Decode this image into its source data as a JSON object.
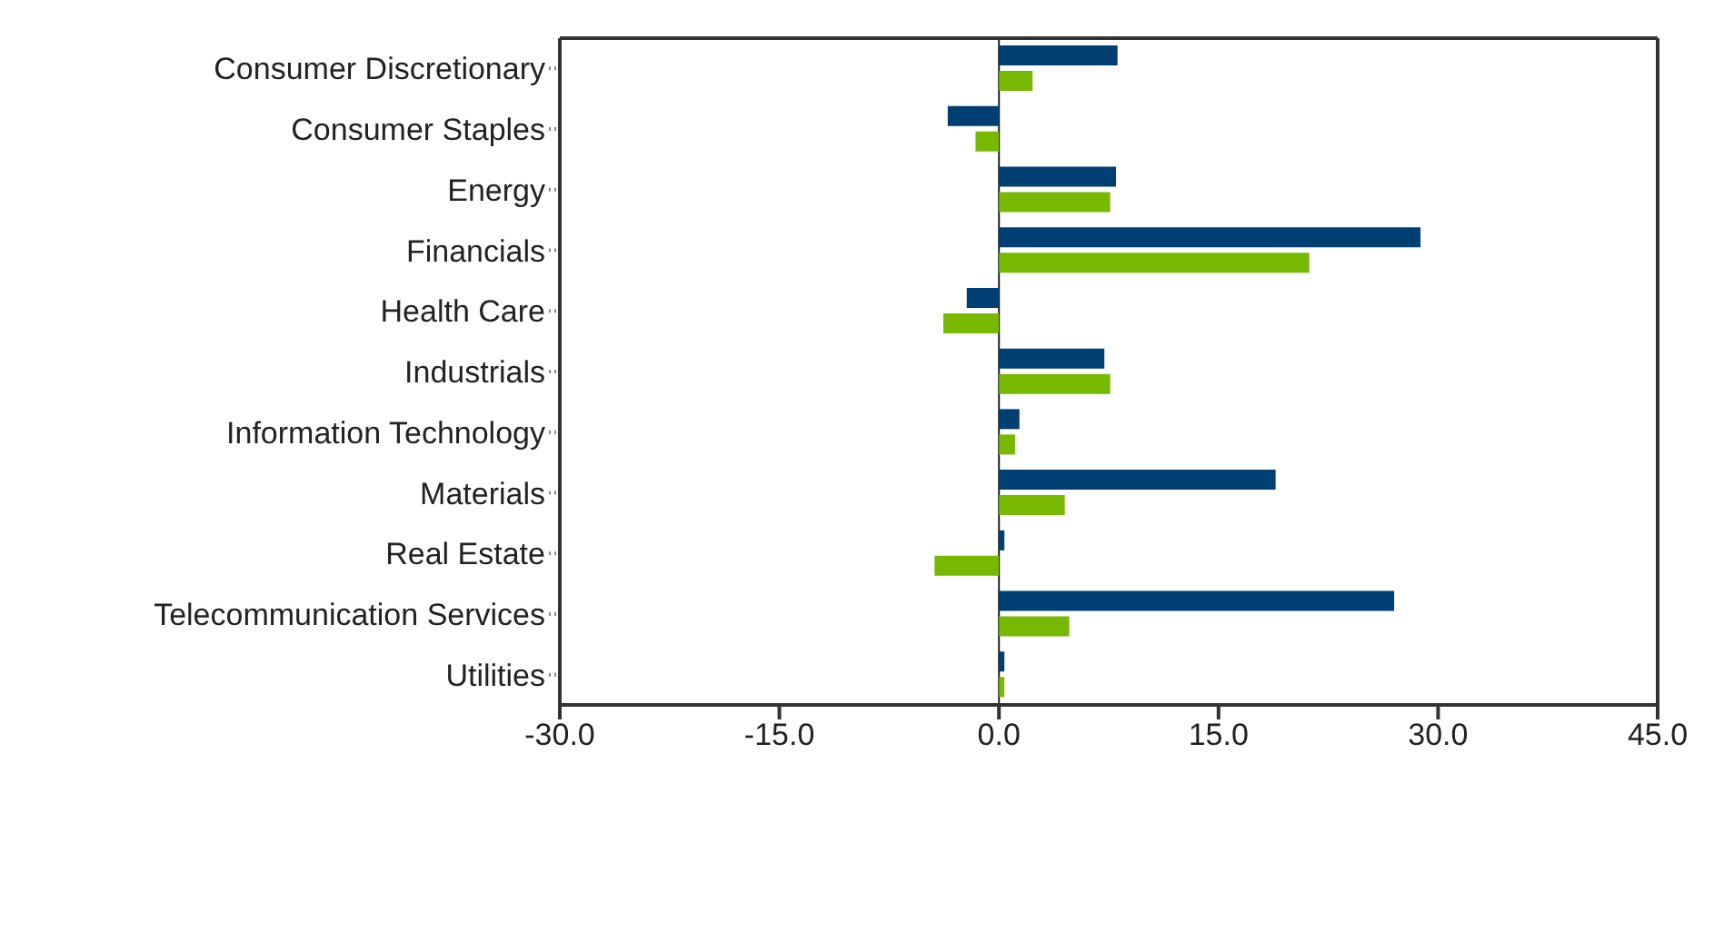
{
  "chart_data": {
    "type": "bar",
    "orientation": "horizontal",
    "categories": [
      "Consumer Discretionary",
      "Consumer Staples",
      "Energy",
      "Financials",
      "Health Care",
      "Industrials",
      "Information Technology",
      "Materials",
      "Real Estate",
      "Telecommunication Services",
      "Utilities"
    ],
    "series": [
      {
        "color": "#003f72",
        "values": [
          8.1,
          -3.5,
          8.0,
          28.8,
          -2.2,
          7.2,
          1.4,
          18.9,
          0.2,
          27.0,
          0.2
        ]
      },
      {
        "color": "#77b800",
        "values": [
          2.3,
          -1.6,
          7.6,
          21.2,
          -3.8,
          7.6,
          1.1,
          4.5,
          -4.4,
          4.8,
          0.2
        ]
      }
    ],
    "xlim": [
      -30,
      45
    ],
    "xticks": [
      {
        "value": -30,
        "label": "-30.0"
      },
      {
        "value": -15,
        "label": "-15.0"
      },
      {
        "value": 0,
        "label": "0.0"
      },
      {
        "value": 15,
        "label": "15.0"
      },
      {
        "value": 30,
        "label": "30.0"
      },
      {
        "value": 45,
        "label": "45.0"
      }
    ],
    "ref_lines": [
      {
        "axis": "x",
        "value": 0,
        "color": "#222222"
      }
    ],
    "grid": false,
    "legend": false
  }
}
